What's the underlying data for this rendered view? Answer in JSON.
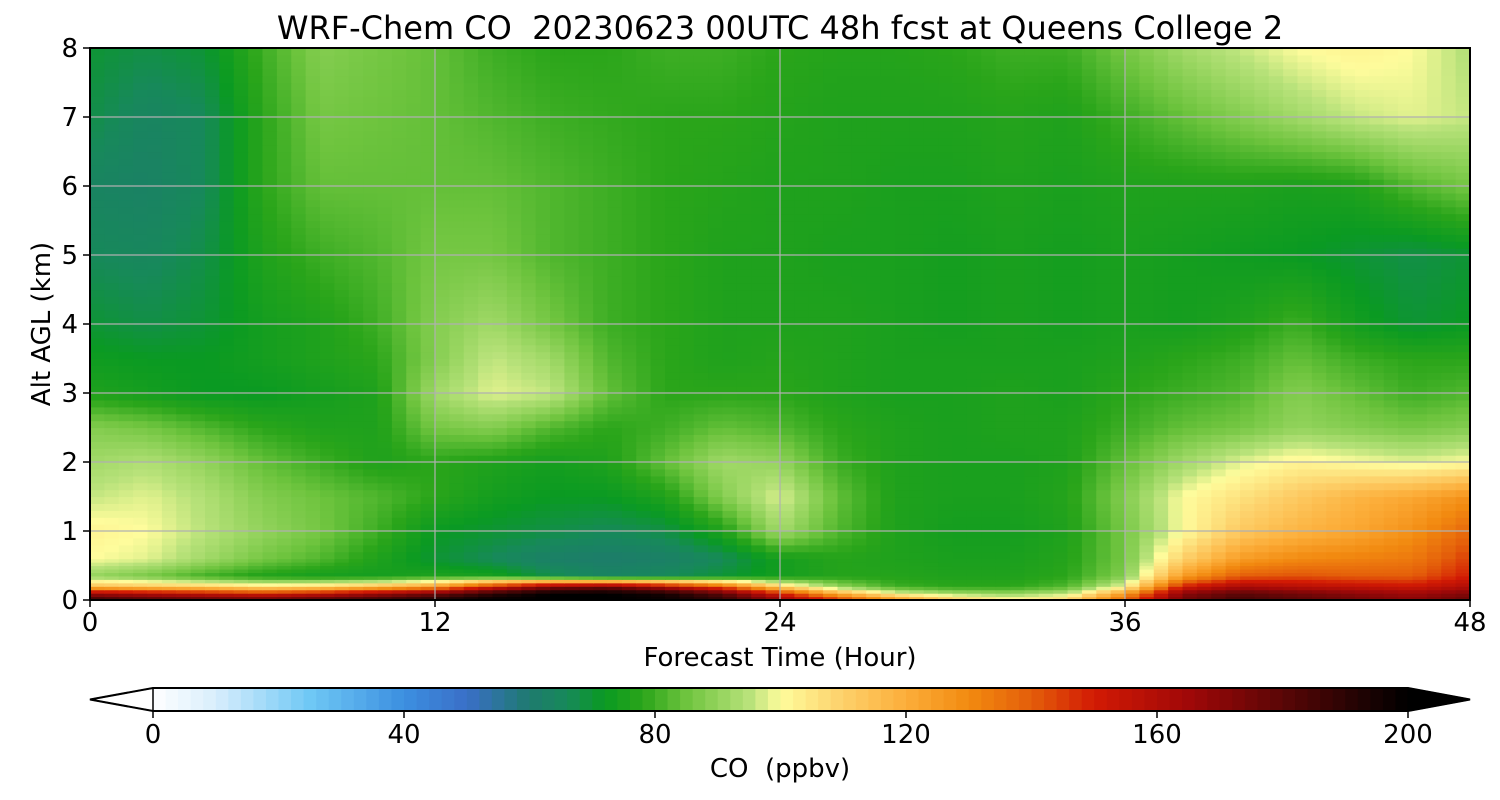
{
  "chart_data": {
    "type": "heatmap",
    "title": "WRF-Chem CO  20230623 00UTC 48h fcst at Queens College 2",
    "xlabel": "Forecast Time (Hour)",
    "ylabel": "Alt AGL (km)",
    "xlim": [
      0,
      48
    ],
    "ylim": [
      0,
      8
    ],
    "xticks": [
      0,
      12,
      24,
      36,
      48
    ],
    "yticks": [
      0,
      1,
      2,
      3,
      4,
      5,
      6,
      7,
      8
    ],
    "grid": true,
    "colorbar": {
      "label": "CO  (ppbv)",
      "min": 0,
      "max": 200,
      "ticks": [
        0,
        40,
        80,
        120,
        160,
        200
      ],
      "extend": "both",
      "stops": [
        {
          "v": 0,
          "c": "#ffffff"
        },
        {
          "v": 10,
          "c": "#d8eefc"
        },
        {
          "v": 25,
          "c": "#6fc8f5"
        },
        {
          "v": 40,
          "c": "#3c8fe0"
        },
        {
          "v": 50,
          "c": "#3a6fc8"
        },
        {
          "v": 60,
          "c": "#1e7a6e"
        },
        {
          "v": 66,
          "c": "#17895a"
        },
        {
          "v": 72,
          "c": "#0a9a22"
        },
        {
          "v": 78,
          "c": "#2aa51a"
        },
        {
          "v": 85,
          "c": "#6ec43e"
        },
        {
          "v": 95,
          "c": "#b8e27a"
        },
        {
          "v": 100,
          "c": "#fefc9c"
        },
        {
          "v": 110,
          "c": "#fdd06a"
        },
        {
          "v": 120,
          "c": "#fcae3a"
        },
        {
          "v": 130,
          "c": "#f28a10"
        },
        {
          "v": 140,
          "c": "#e45e0a"
        },
        {
          "v": 150,
          "c": "#d21a04"
        },
        {
          "v": 165,
          "c": "#a00808"
        },
        {
          "v": 180,
          "c": "#5a0606"
        },
        {
          "v": 195,
          "c": "#150202"
        },
        {
          "v": 200,
          "c": "#000000"
        }
      ]
    },
    "x_hours": [
      0,
      2,
      4,
      6,
      8,
      10,
      12,
      14,
      16,
      18,
      20,
      22,
      24,
      26,
      28,
      30,
      32,
      34,
      36,
      38,
      40,
      42,
      44,
      46,
      48
    ],
    "z_km": [
      0.0,
      0.1,
      0.2,
      0.35,
      0.6,
      1.0,
      1.5,
      2.0,
      2.5,
      3.0,
      3.5,
      4.0,
      5.0,
      6.0,
      7.0,
      8.0
    ],
    "values_ppbv": [
      [
        190,
        185,
        182,
        180,
        185,
        190,
        195,
        200,
        200,
        200,
        198,
        190,
        170,
        150,
        130,
        115,
        105,
        110,
        140,
        175,
        185,
        180,
        175,
        170,
        178
      ],
      [
        165,
        160,
        155,
        150,
        155,
        165,
        175,
        190,
        200,
        200,
        195,
        180,
        150,
        120,
        100,
        92,
        90,
        95,
        125,
        170,
        180,
        175,
        170,
        165,
        172
      ],
      [
        115,
        112,
        110,
        105,
        108,
        115,
        125,
        150,
        170,
        175,
        160,
        140,
        110,
        90,
        80,
        78,
        78,
        82,
        100,
        150,
        162,
        158,
        155,
        152,
        160
      ],
      [
        90,
        86,
        80,
        76,
        74,
        74,
        76,
        75,
        68,
        64,
        66,
        70,
        74,
        77,
        77,
        76,
        76,
        78,
        88,
        125,
        140,
        142,
        140,
        140,
        150
      ],
      [
        100,
        98,
        92,
        86,
        82,
        76,
        70,
        66,
        62,
        61,
        62,
        66,
        74,
        77,
        76,
        75,
        75,
        77,
        86,
        110,
        125,
        130,
        132,
        134,
        145
      ],
      [
        102,
        100,
        95,
        90,
        86,
        80,
        72,
        70,
        68,
        66,
        68,
        76,
        92,
        82,
        76,
        74,
        74,
        76,
        86,
        100,
        112,
        118,
        122,
        128,
        138
      ],
      [
        96,
        98,
        94,
        88,
        85,
        82,
        78,
        74,
        72,
        72,
        76,
        88,
        98,
        84,
        76,
        75,
        75,
        77,
        88,
        100,
        106,
        112,
        118,
        122,
        128
      ],
      [
        92,
        94,
        90,
        84,
        80,
        76,
        78,
        76,
        74,
        76,
        84,
        92,
        90,
        80,
        76,
        75,
        75,
        76,
        84,
        92,
        98,
        102,
        100,
        98,
        100
      ],
      [
        88,
        86,
        82,
        78,
        76,
        76,
        86,
        88,
        82,
        78,
        80,
        84,
        82,
        78,
        76,
        75,
        76,
        76,
        80,
        84,
        86,
        90,
        88,
        86,
        88
      ],
      [
        76,
        74,
        72,
        72,
        74,
        76,
        92,
        98,
        96,
        84,
        78,
        78,
        78,
        76,
        75,
        75,
        76,
        75,
        78,
        80,
        82,
        88,
        84,
        80,
        82
      ],
      [
        73,
        72,
        72,
        74,
        76,
        78,
        88,
        96,
        92,
        82,
        78,
        76,
        77,
        76,
        75,
        75,
        75,
        75,
        76,
        78,
        80,
        84,
        80,
        78,
        78
      ],
      [
        70,
        68,
        70,
        74,
        76,
        80,
        88,
        92,
        86,
        80,
        78,
        76,
        76,
        76,
        75,
        74,
        75,
        74,
        75,
        74,
        76,
        80,
        74,
        70,
        72
      ],
      [
        66,
        65,
        68,
        76,
        80,
        82,
        86,
        86,
        82,
        80,
        78,
        76,
        76,
        75,
        75,
        74,
        75,
        74,
        75,
        74,
        73,
        72,
        70,
        68,
        70
      ],
      [
        64,
        63,
        66,
        78,
        84,
        84,
        84,
        84,
        82,
        80,
        78,
        77,
        76,
        76,
        75,
        75,
        76,
        75,
        76,
        76,
        76,
        75,
        76,
        82,
        86
      ],
      [
        68,
        64,
        66,
        78,
        86,
        85,
        84,
        82,
        80,
        79,
        78,
        78,
        77,
        76,
        76,
        76,
        77,
        76,
        80,
        84,
        88,
        92,
        96,
        98,
        96
      ],
      [
        70,
        68,
        70,
        80,
        88,
        86,
        84,
        80,
        78,
        78,
        80,
        80,
        78,
        77,
        77,
        78,
        80,
        80,
        86,
        92,
        96,
        100,
        102,
        100,
        94
      ]
    ]
  }
}
